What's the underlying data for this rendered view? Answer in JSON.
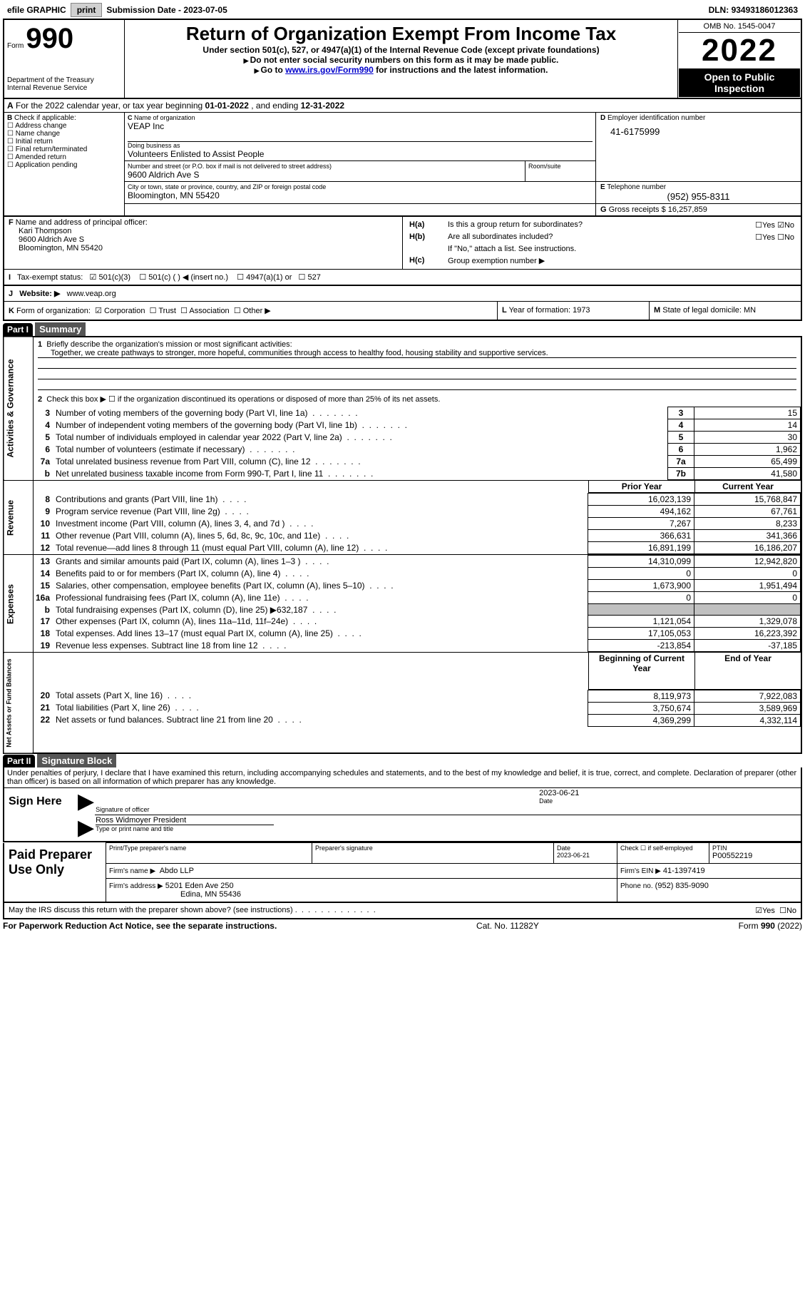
{
  "topbar": {
    "efile": "efile GRAPHIC",
    "print": "print",
    "subdate_label": "Submission Date - ",
    "subdate": "2023-07-05",
    "dln_label": "DLN: ",
    "dln": "93493186012363"
  },
  "header": {
    "form_label": "Form",
    "form_num": "990",
    "dept": "Department of the Treasury",
    "irs": "Internal Revenue Service",
    "title": "Return of Organization Exempt From Income Tax",
    "subtitle": "Under section 501(c), 527, or 4947(a)(1) of the Internal Revenue Code (except private foundations)",
    "note1": "Do not enter social security numbers on this form as it may be made public.",
    "note2_pre": "Go to ",
    "note2_link": "www.irs.gov/Form990",
    "note2_post": " for instructions and the latest information.",
    "omb": "OMB No. 1545-0047",
    "year": "2022",
    "inspection": "Open to Public Inspection"
  },
  "lineA": {
    "pre": "For the 2022 calendar year, or tax year beginning ",
    "begin": "01-01-2022",
    "mid": ", and ending ",
    "end": "12-31-2022"
  },
  "boxB": {
    "label": "Check if applicable:",
    "items": [
      "Address change",
      "Name change",
      "Initial return",
      "Final return/terminated",
      "Amended return",
      "Application pending"
    ],
    "prefix": "B"
  },
  "boxC": {
    "label": "Name of organization",
    "prefix": "C",
    "org": "VEAP Inc",
    "dba_label": "Doing business as",
    "dba": "Volunteers Enlisted to Assist People",
    "addr_label": "Number and street (or P.O. box if mail is not delivered to street address)",
    "room_label": "Room/suite",
    "addr": "9600 Aldrich Ave S",
    "city_label": "City or town, state or province, country, and ZIP or foreign postal code",
    "city": "Bloomington, MN  55420"
  },
  "boxD": {
    "label": "Employer identification number",
    "prefix": "D",
    "val": "41-6175999"
  },
  "boxE": {
    "label": "Telephone number",
    "prefix": "E",
    "val": "(952) 955-8311"
  },
  "boxG": {
    "label": "Gross receipts $",
    "prefix": "G",
    "val": "16,257,859"
  },
  "boxF": {
    "label": "Name and address of principal officer:",
    "prefix": "F",
    "name": "Kari Thompson",
    "addr1": "9600 Aldrich Ave S",
    "addr2": "Bloomington, MN  55420"
  },
  "boxH": {
    "a_label": "Is this a group return for subordinates?",
    "a_prefix": "H(a)",
    "b_label": "Are all subordinates included?",
    "b_prefix": "H(b)",
    "b_note": "If \"No,\" attach a list. See instructions.",
    "c_label": "Group exemption number ▶",
    "c_prefix": "H(c)",
    "yes": "Yes",
    "no": "No"
  },
  "boxI": {
    "prefix": "I",
    "label": "Tax-exempt status:",
    "opts": [
      "501(c)(3)",
      "501(c) (  ) ◀ (insert no.)",
      "4947(a)(1) or",
      "527"
    ]
  },
  "boxJ": {
    "prefix": "J",
    "label": "Website: ▶",
    "val": "www.veap.org"
  },
  "boxK": {
    "prefix": "K",
    "label": "Form of organization:",
    "opts": [
      "Corporation",
      "Trust",
      "Association",
      "Other ▶"
    ]
  },
  "boxL": {
    "prefix": "L",
    "label": "Year of formation:",
    "val": "1973"
  },
  "boxM": {
    "prefix": "M",
    "label": "State of legal domicile:",
    "val": "MN"
  },
  "part1": {
    "bar": "Part I",
    "title": "Summary",
    "q1_label": "Briefly describe the organization's mission or most significant activities:",
    "q1_text": "Together, we create pathways to stronger, more hopeful, communities through access to healthy food, housing stability and supportive services.",
    "q2": "Check this box ▶ ☐ if the organization discontinued its operations or disposed of more than 25% of its net assets.",
    "vert_ag": "Activities & Governance",
    "vert_rev": "Revenue",
    "vert_exp": "Expenses",
    "vert_net": "Net Assets or Fund Balances",
    "col_prior": "Prior Year",
    "col_curr": "Current Year",
    "col_begin": "Beginning of Current Year",
    "col_end": "End of Year",
    "lines_ag": [
      {
        "n": "3",
        "t": "Number of voting members of the governing body (Part VI, line 1a)",
        "box": "3",
        "v": "15"
      },
      {
        "n": "4",
        "t": "Number of independent voting members of the governing body (Part VI, line 1b)",
        "box": "4",
        "v": "14"
      },
      {
        "n": "5",
        "t": "Total number of individuals employed in calendar year 2022 (Part V, line 2a)",
        "box": "5",
        "v": "30"
      },
      {
        "n": "6",
        "t": "Total number of volunteers (estimate if necessary)",
        "box": "6",
        "v": "1,962"
      },
      {
        "n": "7a",
        "t": "Total unrelated business revenue from Part VIII, column (C), line 12",
        "box": "7a",
        "v": "65,499"
      },
      {
        "n": "b",
        "t": "Net unrelated business taxable income from Form 990-T, Part I, line 11",
        "box": "7b",
        "v": "41,580"
      }
    ],
    "lines_rev": [
      {
        "n": "8",
        "t": "Contributions and grants (Part VIII, line 1h)",
        "p": "16,023,139",
        "c": "15,768,847"
      },
      {
        "n": "9",
        "t": "Program service revenue (Part VIII, line 2g)",
        "p": "494,162",
        "c": "67,761"
      },
      {
        "n": "10",
        "t": "Investment income (Part VIII, column (A), lines 3, 4, and 7d )",
        "p": "7,267",
        "c": "8,233"
      },
      {
        "n": "11",
        "t": "Other revenue (Part VIII, column (A), lines 5, 6d, 8c, 9c, 10c, and 11e)",
        "p": "366,631",
        "c": "341,366"
      },
      {
        "n": "12",
        "t": "Total revenue—add lines 8 through 11 (must equal Part VIII, column (A), line 12)",
        "p": "16,891,199",
        "c": "16,186,207"
      }
    ],
    "lines_exp": [
      {
        "n": "13",
        "t": "Grants and similar amounts paid (Part IX, column (A), lines 1–3 )",
        "p": "14,310,099",
        "c": "12,942,820"
      },
      {
        "n": "14",
        "t": "Benefits paid to or for members (Part IX, column (A), line 4)",
        "p": "0",
        "c": "0"
      },
      {
        "n": "15",
        "t": "Salaries, other compensation, employee benefits (Part IX, column (A), lines 5–10)",
        "p": "1,673,900",
        "c": "1,951,494"
      },
      {
        "n": "16a",
        "t": "Professional fundraising fees (Part IX, column (A), line 11e)",
        "p": "0",
        "c": "0"
      },
      {
        "n": "b",
        "t": "Total fundraising expenses (Part IX, column (D), line 25) ▶632,187",
        "p": "",
        "c": "",
        "shaded": true
      },
      {
        "n": "17",
        "t": "Other expenses (Part IX, column (A), lines 11a–11d, 11f–24e)",
        "p": "1,121,054",
        "c": "1,329,078"
      },
      {
        "n": "18",
        "t": "Total expenses. Add lines 13–17 (must equal Part IX, column (A), line 25)",
        "p": "17,105,053",
        "c": "16,223,392"
      },
      {
        "n": "19",
        "t": "Revenue less expenses. Subtract line 18 from line 12",
        "p": "-213,854",
        "c": "-37,185"
      }
    ],
    "lines_net": [
      {
        "n": "20",
        "t": "Total assets (Part X, line 16)",
        "p": "8,119,973",
        "c": "7,922,083"
      },
      {
        "n": "21",
        "t": "Total liabilities (Part X, line 26)",
        "p": "3,750,674",
        "c": "3,589,969"
      },
      {
        "n": "22",
        "t": "Net assets or fund balances. Subtract line 21 from line 20",
        "p": "4,369,299",
        "c": "4,332,114"
      }
    ]
  },
  "part2": {
    "bar": "Part II",
    "title": "Signature Block",
    "decl": "Under penalties of perjury, I declare that I have examined this return, including accompanying schedules and statements, and to the best of my knowledge and belief, it is true, correct, and complete. Declaration of preparer (other than officer) is based on all information of which preparer has any knowledge.",
    "sign_here": "Sign Here",
    "sig_officer": "Signature of officer",
    "sig_date": "2023-06-21",
    "date_label": "Date",
    "officer_name": "Ross Widmoyer President",
    "officer_type": "Type or print name and title",
    "paid": "Paid Preparer Use Only",
    "prep_name_label": "Print/Type preparer's name",
    "prep_sig_label": "Preparer's signature",
    "prep_date": "2023-06-21",
    "check_self": "Check ☐ if self-employed",
    "ptin_label": "PTIN",
    "ptin": "P00552219",
    "firm_name_label": "Firm's name    ▶",
    "firm_name": "Abdo LLP",
    "firm_ein_label": "Firm's EIN ▶",
    "firm_ein": "41-1397419",
    "firm_addr_label": "Firm's address ▶",
    "firm_addr1": "5201 Eden Ave 250",
    "firm_addr2": "Edina, MN  55436",
    "phone_label": "Phone no.",
    "phone": "(952) 835-9090",
    "discuss": "May the IRS discuss this return with the preparer shown above? (see instructions)",
    "yes": "Yes",
    "no": "No"
  },
  "footer": {
    "pra": "For Paperwork Reduction Act Notice, see the separate instructions.",
    "cat": "Cat. No. 11282Y",
    "form": "Form 990 (2022)"
  }
}
